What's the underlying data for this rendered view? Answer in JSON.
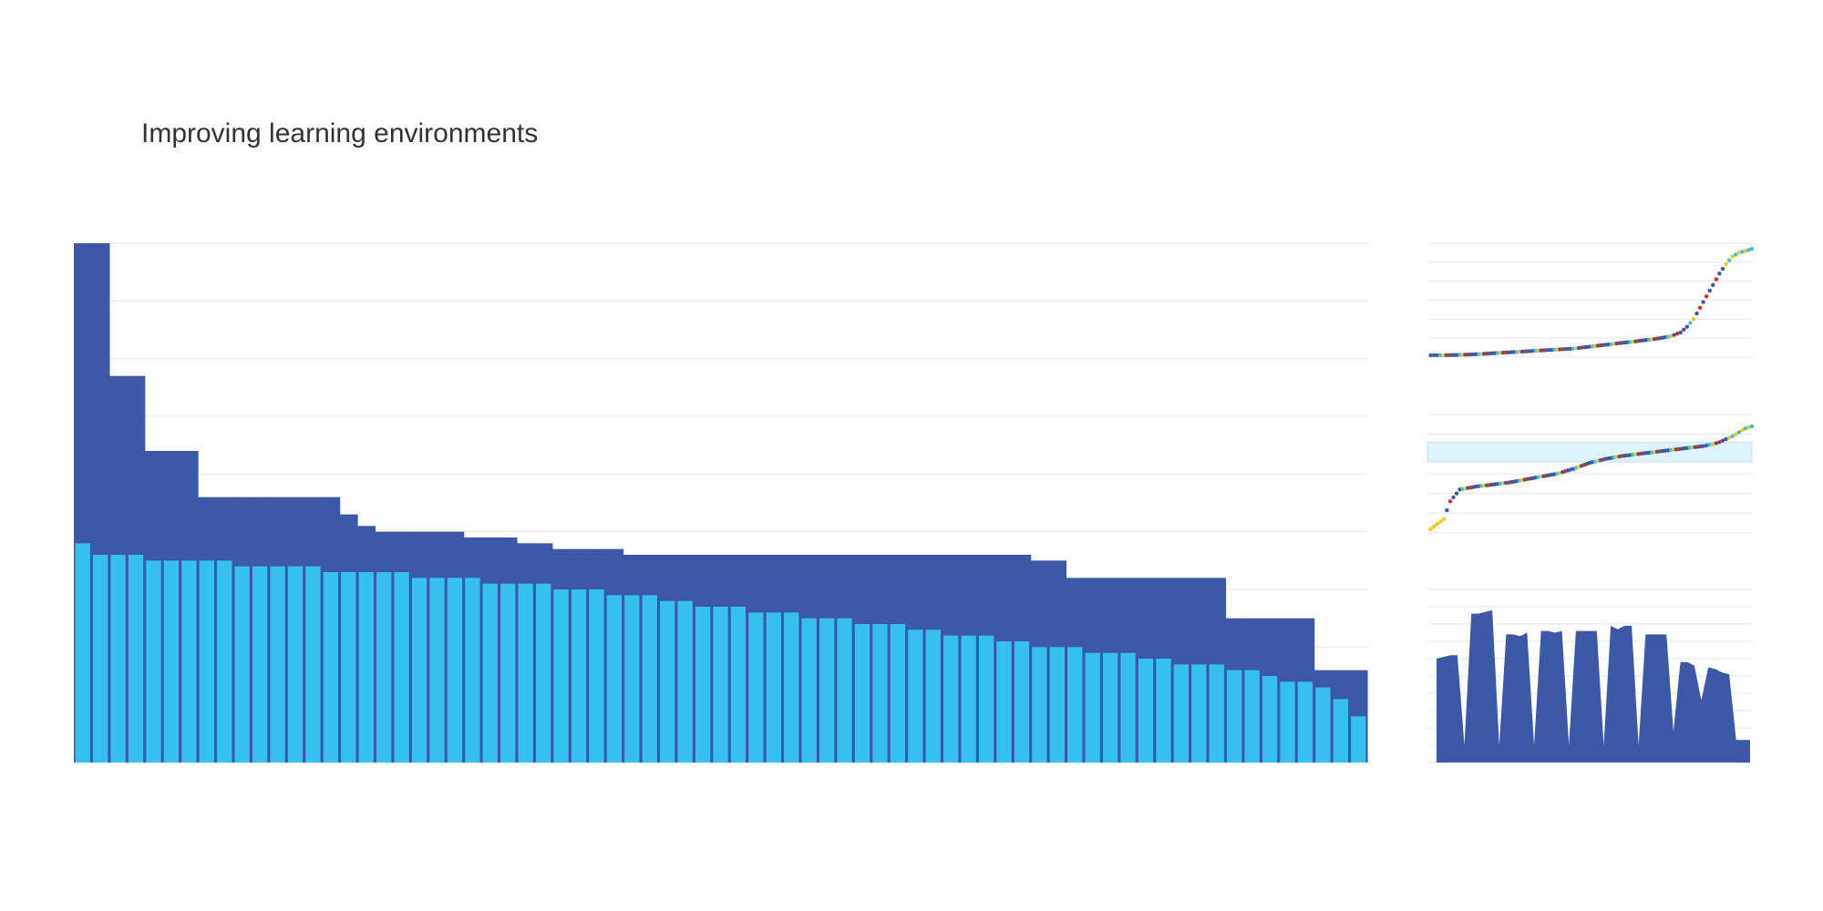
{
  "page": {
    "title": "Improving learning environments"
  },
  "colors": {
    "dark_blue": "#3d58a6",
    "light_blue": "#35c0ef",
    "gridline": "#e6e6e6",
    "band": "#dff3fb",
    "yellow": "#f5c518",
    "red": "#d62d20"
  },
  "chart_data": [
    {
      "type": "bar",
      "title": "",
      "xlabel": "",
      "ylabel": "",
      "ylim": [
        0,
        9
      ],
      "grid": true,
      "tick_labels_shown": false,
      "series": [
        {
          "style": "stepped area (dark blue)",
          "values": [
            9.0,
            9.0,
            6.7,
            6.7,
            5.4,
            5.4,
            5.4,
            4.6,
            4.6,
            4.6,
            4.6,
            4.6,
            4.6,
            4.6,
            4.6,
            4.3,
            4.1,
            4.0,
            4.0,
            4.0,
            4.0,
            4.0,
            3.9,
            3.9,
            3.9,
            3.8,
            3.8,
            3.7,
            3.7,
            3.7,
            3.7,
            3.6,
            3.6,
            3.6,
            3.6,
            3.6,
            3.6,
            3.6,
            3.6,
            3.6,
            3.6,
            3.6,
            3.6,
            3.6,
            3.6,
            3.6,
            3.6,
            3.6,
            3.6,
            3.6,
            3.6,
            3.6,
            3.6,
            3.6,
            3.5,
            3.5,
            3.2,
            3.2,
            3.2,
            3.2,
            3.2,
            3.2,
            3.2,
            3.2,
            3.2,
            2.5,
            2.5,
            2.5,
            2.5,
            2.5,
            1.6,
            1.6,
            1.6
          ]
        },
        {
          "style": "bars (light blue)",
          "values": [
            3.8,
            3.6,
            3.6,
            3.6,
            3.5,
            3.5,
            3.5,
            3.5,
            3.5,
            3.4,
            3.4,
            3.4,
            3.4,
            3.4,
            3.3,
            3.3,
            3.3,
            3.3,
            3.3,
            3.2,
            3.2,
            3.2,
            3.2,
            3.1,
            3.1,
            3.1,
            3.1,
            3.0,
            3.0,
            3.0,
            2.9,
            2.9,
            2.9,
            2.8,
            2.8,
            2.7,
            2.7,
            2.7,
            2.6,
            2.6,
            2.6,
            2.5,
            2.5,
            2.5,
            2.4,
            2.4,
            2.4,
            2.3,
            2.3,
            2.2,
            2.2,
            2.2,
            2.1,
            2.1,
            2.0,
            2.0,
            2.0,
            1.9,
            1.9,
            1.9,
            1.8,
            1.8,
            1.7,
            1.7,
            1.7,
            1.6,
            1.6,
            1.5,
            1.4,
            1.4,
            1.3,
            1.1,
            0.8
          ]
        }
      ]
    },
    {
      "type": "scatter",
      "title": "",
      "ylim": [
        0,
        6
      ],
      "grid": true,
      "points": [
        {
          "x": 1,
          "y": 0.1
        },
        {
          "x": 5,
          "y": 0.1
        },
        {
          "x": 10,
          "y": 0.12
        },
        {
          "x": 15,
          "y": 0.15
        },
        {
          "x": 20,
          "y": 0.2
        },
        {
          "x": 25,
          "y": 0.25
        },
        {
          "x": 30,
          "y": 0.3
        },
        {
          "x": 35,
          "y": 0.35
        },
        {
          "x": 40,
          "y": 0.4
        },
        {
          "x": 45,
          "y": 0.45
        },
        {
          "x": 50,
          "y": 0.55
        },
        {
          "x": 55,
          "y": 0.65
        },
        {
          "x": 60,
          "y": 0.75
        },
        {
          "x": 65,
          "y": 0.85
        },
        {
          "x": 70,
          "y": 0.95
        },
        {
          "x": 75,
          "y": 1.1
        },
        {
          "x": 78,
          "y": 1.3
        },
        {
          "x": 80,
          "y": 1.6
        },
        {
          "x": 82,
          "y": 2.0
        },
        {
          "x": 84,
          "y": 2.6
        },
        {
          "x": 86,
          "y": 3.2
        },
        {
          "x": 88,
          "y": 3.8
        },
        {
          "x": 90,
          "y": 4.4
        },
        {
          "x": 92,
          "y": 4.9
        },
        {
          "x": 94,
          "y": 5.3
        },
        {
          "x": 96,
          "y": 5.5
        },
        {
          "x": 98,
          "y": 5.6
        },
        {
          "x": 100,
          "y": 5.7
        }
      ]
    },
    {
      "type": "scatter",
      "title": "",
      "ylim": [
        0,
        6
      ],
      "grid": true,
      "highlight_band": [
        3.6,
        4.6
      ],
      "points": [
        {
          "x": 1,
          "y": 0.2
        },
        {
          "x": 3,
          "y": 0.45
        },
        {
          "x": 5,
          "y": 0.7
        },
        {
          "x": 7,
          "y": 1.6
        },
        {
          "x": 10,
          "y": 2.2
        },
        {
          "x": 15,
          "y": 2.35
        },
        {
          "x": 20,
          "y": 2.45
        },
        {
          "x": 25,
          "y": 2.55
        },
        {
          "x": 30,
          "y": 2.7
        },
        {
          "x": 35,
          "y": 2.85
        },
        {
          "x": 40,
          "y": 3.0
        },
        {
          "x": 45,
          "y": 3.25
        },
        {
          "x": 50,
          "y": 3.55
        },
        {
          "x": 55,
          "y": 3.75
        },
        {
          "x": 60,
          "y": 3.9
        },
        {
          "x": 65,
          "y": 4.0
        },
        {
          "x": 70,
          "y": 4.1
        },
        {
          "x": 75,
          "y": 4.2
        },
        {
          "x": 80,
          "y": 4.3
        },
        {
          "x": 85,
          "y": 4.4
        },
        {
          "x": 88,
          "y": 4.5
        },
        {
          "x": 90,
          "y": 4.6
        },
        {
          "x": 92,
          "y": 4.75
        },
        {
          "x": 94,
          "y": 4.9
        },
        {
          "x": 96,
          "y": 5.1
        },
        {
          "x": 98,
          "y": 5.3
        },
        {
          "x": 100,
          "y": 5.4
        }
      ]
    },
    {
      "type": "area",
      "title": "",
      "ylim": [
        0,
        10
      ],
      "grid": true,
      "values": [
        6.0,
        6.1,
        6.2,
        6.2,
        1.0,
        8.6,
        8.6,
        8.7,
        8.8,
        1.0,
        7.4,
        7.4,
        7.3,
        7.5,
        1.0,
        7.6,
        7.6,
        7.5,
        7.6,
        1.0,
        7.6,
        7.6,
        7.6,
        7.6,
        1.0,
        7.9,
        7.7,
        7.9,
        7.9,
        1.0,
        7.4,
        7.4,
        7.4,
        7.4,
        1.8,
        5.8,
        5.8,
        5.6,
        3.6,
        5.5,
        5.4,
        5.2,
        5.1,
        1.3,
        1.3,
        1.3
      ]
    }
  ]
}
